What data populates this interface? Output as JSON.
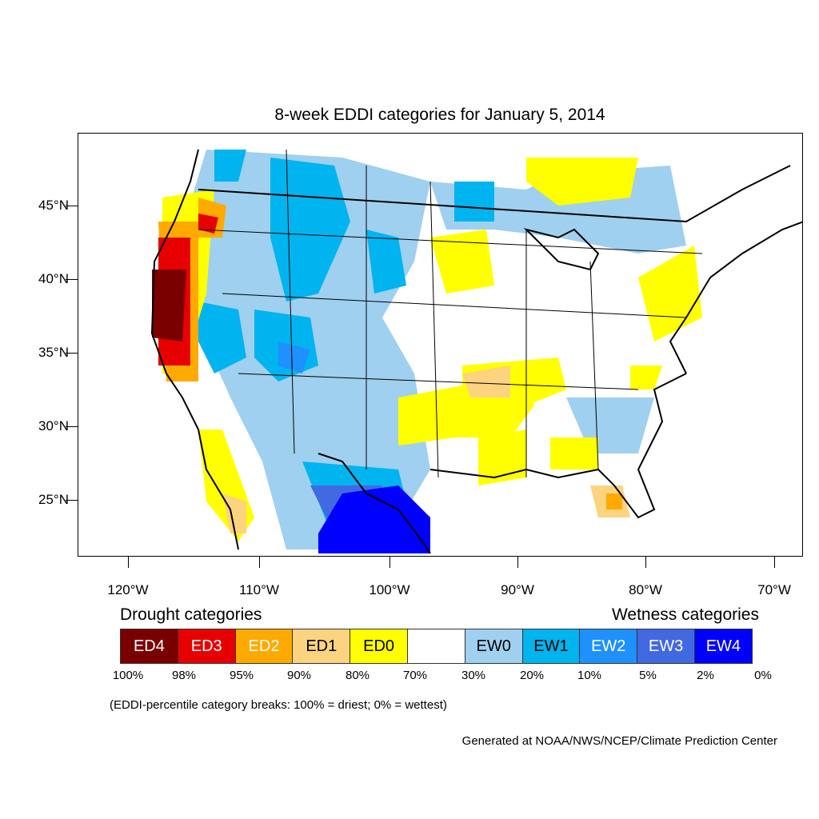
{
  "title": "8-week EDDI categories for January 5, 2014",
  "lat_labels": [
    "45°N",
    "40°N",
    "35°N",
    "30°N",
    "25°N"
  ],
  "lon_labels": [
    "120°W",
    "110°W",
    "100°W",
    "90°W",
    "80°W",
    "70°W"
  ],
  "legend": {
    "drought_heading": "Drought categories",
    "wetness_heading": "Wetness categories",
    "categories": [
      {
        "label": "ED4",
        "color": "#7a0000",
        "text_color": "#ffffff"
      },
      {
        "label": "ED3",
        "color": "#e60000",
        "text_color": "#ffffff"
      },
      {
        "label": "ED2",
        "color": "#ffaa00",
        "text_color": "#ffffff"
      },
      {
        "label": "ED1",
        "color": "#fcd37f",
        "text_color": "#000000"
      },
      {
        "label": "ED0",
        "color": "#ffff00",
        "text_color": "#000000"
      },
      {
        "label": "",
        "color": "#ffffff",
        "text_color": "#000000"
      },
      {
        "label": "EW0",
        "color": "#9fd0ef",
        "text_color": "#000000"
      },
      {
        "label": "EW1",
        "color": "#00b4ef",
        "text_color": "#000000"
      },
      {
        "label": "EW2",
        "color": "#1e90ff",
        "text_color": "#ffffff"
      },
      {
        "label": "EW3",
        "color": "#4169e1",
        "text_color": "#ffffff"
      },
      {
        "label": "EW4",
        "color": "#0000ff",
        "text_color": "#ffffff"
      }
    ],
    "percent_breaks": [
      "100%",
      "98%",
      "95%",
      "90%",
      "80%",
      "70%",
      "30%",
      "20%",
      "10%",
      "5%",
      "2%",
      "0%"
    ]
  },
  "note": "(EDDI-percentile category breaks: 100% = driest; 0% = wettest)",
  "credit": "Generated at NOAA/NWS/NCEP/Climate Prediction Center"
}
